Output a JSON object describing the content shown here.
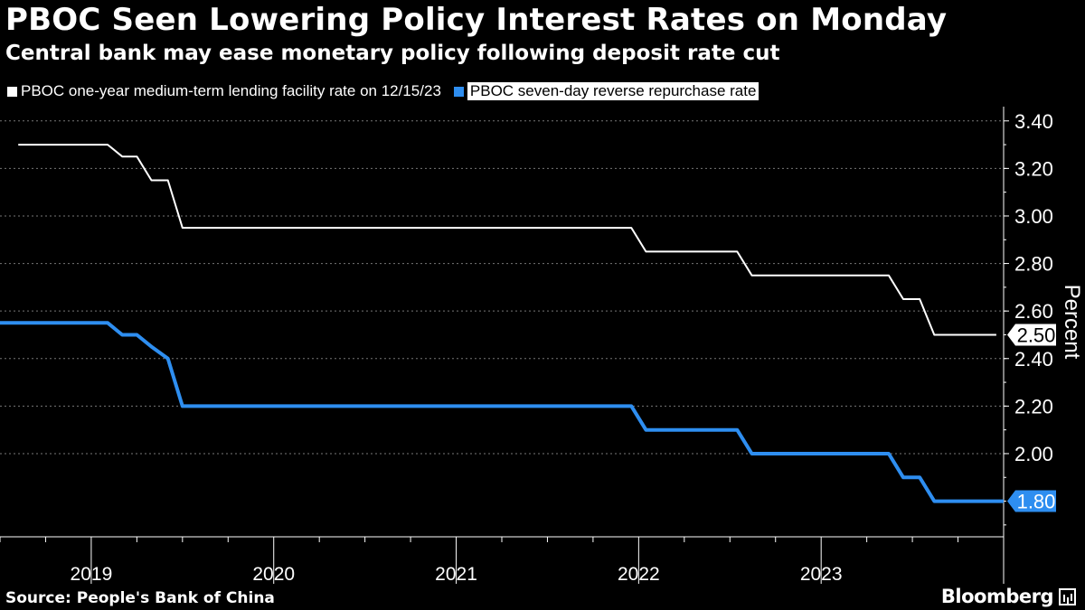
{
  "chart_data": {
    "type": "line",
    "title": "PBOC Seen Lowering Policy Interest Rates on Monday",
    "subtitle": "Central bank may ease monetary policy following deposit rate cut",
    "ylabel": "Percent",
    "ylim": [
      1.65,
      3.46
    ],
    "yticks": [
      "3.40",
      "3.20",
      "3.00",
      "2.80",
      "2.60",
      "2.40",
      "2.20",
      "2.00"
    ],
    "ytick_values": [
      3.4,
      3.2,
      3.0,
      2.8,
      2.6,
      2.4,
      2.2,
      2.0
    ],
    "xlim": [
      2018.5,
      2024.0
    ],
    "years": [
      "2019",
      "2020",
      "2021",
      "2022",
      "2023"
    ],
    "grid": true,
    "series": [
      {
        "name": "PBOC one-year medium-term lending facility rate on 12/15/23",
        "color": "#ffffff",
        "last_label": "2.50",
        "points": [
          [
            2018.6,
            3.3
          ],
          [
            2019.09,
            3.3
          ],
          [
            2019.17,
            3.25
          ],
          [
            2019.25,
            3.25
          ],
          [
            2019.33,
            3.15
          ],
          [
            2019.42,
            3.15
          ],
          [
            2019.5,
            2.95
          ],
          [
            2020.0,
            2.95
          ],
          [
            2021.0,
            2.95
          ],
          [
            2021.96,
            2.95
          ],
          [
            2022.04,
            2.85
          ],
          [
            2022.54,
            2.85
          ],
          [
            2022.62,
            2.75
          ],
          [
            2023.0,
            2.75
          ],
          [
            2023.37,
            2.75
          ],
          [
            2023.45,
            2.65
          ],
          [
            2023.54,
            2.65
          ],
          [
            2023.62,
            2.5
          ],
          [
            2023.96,
            2.5
          ]
        ]
      },
      {
        "name": "PBOC seven-day reverse repurchase rate",
        "color": "#2e8ef0",
        "last_label": "1.80",
        "points": [
          [
            2018.5,
            2.55
          ],
          [
            2019.09,
            2.55
          ],
          [
            2019.17,
            2.5
          ],
          [
            2019.25,
            2.5
          ],
          [
            2019.33,
            2.45
          ],
          [
            2019.42,
            2.4
          ],
          [
            2019.5,
            2.2
          ],
          [
            2020.0,
            2.2
          ],
          [
            2021.0,
            2.2
          ],
          [
            2021.96,
            2.2
          ],
          [
            2022.04,
            2.1
          ],
          [
            2022.54,
            2.1
          ],
          [
            2022.62,
            2.0
          ],
          [
            2023.0,
            2.0
          ],
          [
            2023.37,
            2.0
          ],
          [
            2023.45,
            1.9
          ],
          [
            2023.54,
            1.9
          ],
          [
            2023.62,
            1.8
          ],
          [
            2024.0,
            1.8
          ]
        ]
      }
    ]
  },
  "source": "Source: People's Bank of China",
  "brand": "Bloomberg"
}
